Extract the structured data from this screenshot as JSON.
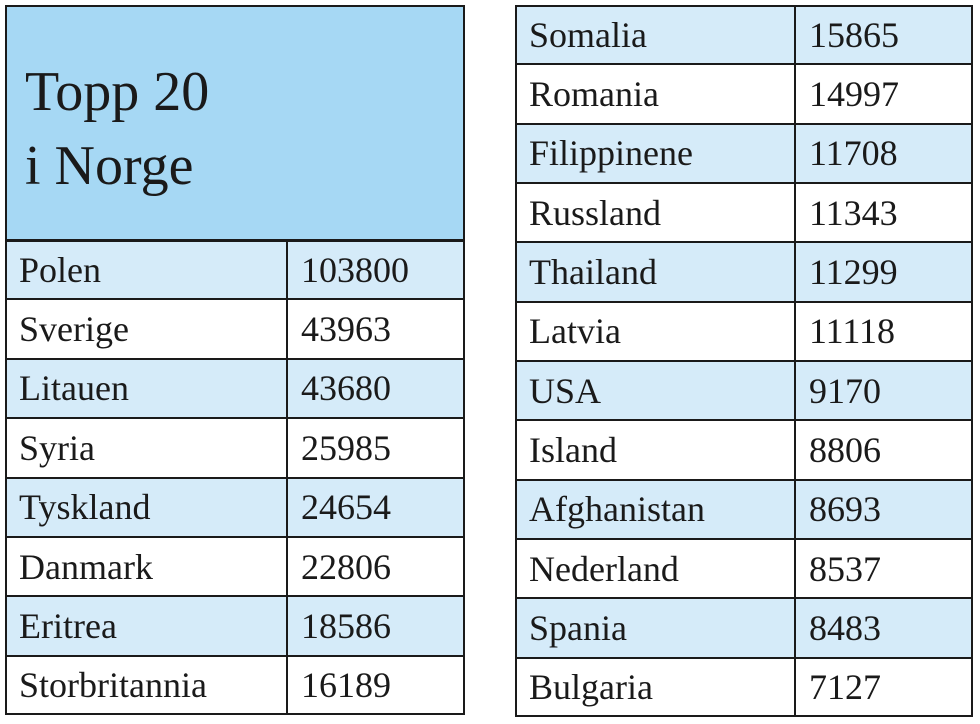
{
  "header": {
    "title_lines": [
      "Topp 20",
      "i Norge"
    ]
  },
  "left_table": {
    "rows": [
      [
        "Polen",
        103800
      ],
      [
        "Sverige",
        43963
      ],
      [
        "Litauen",
        43680
      ],
      [
        "Syria",
        25985
      ],
      [
        "Tyskland",
        24654
      ],
      [
        "Danmark",
        22806
      ],
      [
        "Eritrea",
        18586
      ],
      [
        "Storbritannia",
        16189
      ]
    ]
  },
  "right_table": {
    "rows": [
      [
        "Somalia",
        15865
      ],
      [
        "Romania",
        14997
      ],
      [
        "Filippinene",
        11708
      ],
      [
        "Russland",
        11343
      ],
      [
        "Thailand",
        11299
      ],
      [
        "Latvia",
        11118
      ],
      [
        "USA",
        9170
      ],
      [
        "Island",
        8806
      ],
      [
        "Afghanistan",
        8693
      ],
      [
        "Nederland",
        8537
      ],
      [
        "Spania",
        8483
      ],
      [
        "Bulgaria",
        7127
      ]
    ]
  }
}
